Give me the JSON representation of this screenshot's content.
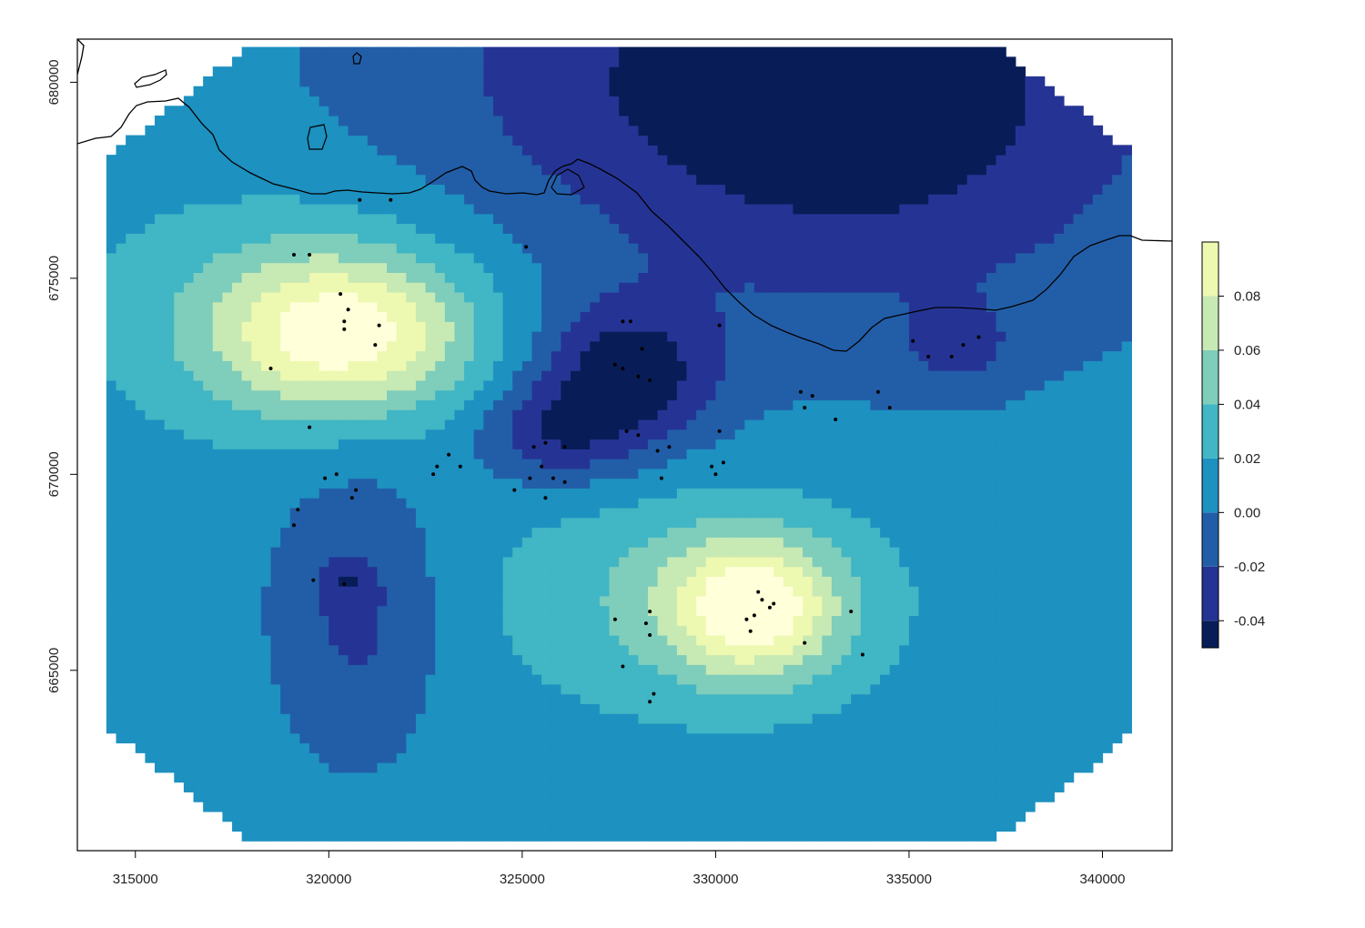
{
  "map": {
    "x_axis": {
      "ticks": [
        315000,
        320000,
        325000,
        330000,
        335000,
        340000
      ],
      "tick_labels": [
        "315000",
        "320000",
        "325000",
        "330000",
        "335000",
        "340000"
      ],
      "range": [
        313500,
        341800
      ]
    },
    "y_axis": {
      "ticks": [
        665000,
        670000,
        675000,
        680000
      ],
      "tick_labels": [
        "665000",
        "670000",
        "675000",
        "680000"
      ],
      "range": [
        660400,
        681100
      ]
    },
    "legend": {
      "placement": "right",
      "breaks": [
        -0.05,
        -0.04,
        -0.02,
        0.0,
        0.02,
        0.04,
        0.06,
        0.08,
        0.1
      ],
      "tick_values": [
        0.08,
        0.06,
        0.04,
        0.02,
        0.0,
        -0.02,
        -0.04
      ],
      "tick_labels": [
        "0.08",
        "0.06",
        "0.04",
        "0.02",
        "0.00",
        "-0.02",
        "-0.04"
      ],
      "colors": [
        "#081d58",
        "#253494",
        "#225ea8",
        "#1d91c0",
        "#41b6c4",
        "#7fcdbb",
        "#c7e9b4",
        "#edf8b1",
        "#ffffd9"
      ]
    },
    "surface": {
      "background_value": 0.01,
      "features": [
        {
          "x": 320400,
          "y": 673600,
          "peak": 0.09,
          "sx": 2300,
          "sy": 1400
        },
        {
          "x": 318800,
          "y": 674300,
          "peak": 0.025,
          "sx": 3600,
          "sy": 2300
        },
        {
          "x": 331000,
          "y": 666600,
          "peak": 0.088,
          "sx": 1500,
          "sy": 1200
        },
        {
          "x": 329500,
          "y": 666900,
          "peak": 0.035,
          "sx": 3400,
          "sy": 2000
        },
        {
          "x": 327700,
          "y": 672500,
          "peak": -0.06,
          "sx": 1600,
          "sy": 1300
        },
        {
          "x": 325800,
          "y": 671000,
          "peak": -0.04,
          "sx": 1400,
          "sy": 900
        },
        {
          "x": 334000,
          "y": 679000,
          "peak": -0.045,
          "sx": 5800,
          "sy": 4200
        },
        {
          "x": 330000,
          "y": 680500,
          "peak": -0.03,
          "sx": 7000,
          "sy": 3000
        },
        {
          "x": 336300,
          "y": 673300,
          "peak": -0.028,
          "sx": 900,
          "sy": 700
        },
        {
          "x": 320700,
          "y": 666500,
          "peak": -0.035,
          "sx": 1500,
          "sy": 2600
        },
        {
          "x": 320500,
          "y": 667200,
          "peak": -0.02,
          "sx": 400,
          "sy": 350
        }
      ]
    },
    "observation_points": [
      [
        320300,
        674600
      ],
      [
        320500,
        674200
      ],
      [
        320400,
        673900
      ],
      [
        320400,
        673700
      ],
      [
        321300,
        673800
      ],
      [
        321200,
        673300
      ],
      [
        318500,
        672700
      ],
      [
        319500,
        671200
      ],
      [
        319100,
        675600
      ],
      [
        319500,
        675600
      ],
      [
        320800,
        677000
      ],
      [
        321600,
        677000
      ],
      [
        325100,
        675800
      ],
      [
        319900,
        669900
      ],
      [
        320200,
        670000
      ],
      [
        320700,
        669600
      ],
      [
        320600,
        669400
      ],
      [
        319200,
        669100
      ],
      [
        319100,
        668700
      ],
      [
        319600,
        667300
      ],
      [
        320400,
        667200
      ],
      [
        322800,
        670200
      ],
      [
        323100,
        670500
      ],
      [
        322700,
        670000
      ],
      [
        323400,
        670200
      ],
      [
        324800,
        669600
      ],
      [
        325200,
        669900
      ],
      [
        325500,
        670200
      ],
      [
        325800,
        669900
      ],
      [
        326100,
        669800
      ],
      [
        325600,
        669400
      ],
      [
        325300,
        670700
      ],
      [
        325600,
        670800
      ],
      [
        326100,
        670700
      ],
      [
        327600,
        673900
      ],
      [
        327800,
        673900
      ],
      [
        327400,
        672800
      ],
      [
        327600,
        672700
      ],
      [
        328000,
        672500
      ],
      [
        328100,
        673200
      ],
      [
        328300,
        672400
      ],
      [
        327700,
        671100
      ],
      [
        328000,
        671000
      ],
      [
        328500,
        670600
      ],
      [
        328800,
        670700
      ],
      [
        328600,
        669900
      ],
      [
        329900,
        670200
      ],
      [
        330200,
        670300
      ],
      [
        330000,
        670000
      ],
      [
        330100,
        671100
      ],
      [
        330100,
        673800
      ],
      [
        332200,
        672100
      ],
      [
        332300,
        671700
      ],
      [
        332500,
        672000
      ],
      [
        333100,
        671400
      ],
      [
        334200,
        672100
      ],
      [
        334500,
        671700
      ],
      [
        335100,
        673400
      ],
      [
        335500,
        673000
      ],
      [
        336100,
        673000
      ],
      [
        336400,
        673300
      ],
      [
        336800,
        673500
      ],
      [
        331100,
        667000
      ],
      [
        331200,
        666800
      ],
      [
        331400,
        666600
      ],
      [
        331000,
        666400
      ],
      [
        330800,
        666300
      ],
      [
        330900,
        666000
      ],
      [
        331500,
        666700
      ],
      [
        332300,
        665700
      ],
      [
        333500,
        666500
      ],
      [
        333800,
        665400
      ],
      [
        328300,
        666500
      ],
      [
        328200,
        666200
      ],
      [
        328300,
        665900
      ],
      [
        327400,
        666300
      ],
      [
        327600,
        665100
      ],
      [
        328300,
        664200
      ],
      [
        328400,
        664400
      ]
    ]
  }
}
